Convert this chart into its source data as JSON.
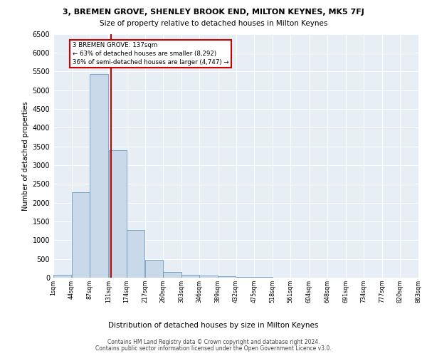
{
  "title_line1": "3, BREMEN GROVE, SHENLEY BROOK END, MILTON KEYNES, MK5 7FJ",
  "title_line2": "Size of property relative to detached houses in Milton Keynes",
  "xlabel": "Distribution of detached houses by size in Milton Keynes",
  "ylabel": "Number of detached properties",
  "bin_edges": [
    1,
    44,
    87,
    131,
    174,
    217,
    260,
    303,
    346,
    389,
    432,
    475,
    518,
    561,
    604,
    648,
    691,
    734,
    777,
    820,
    863
  ],
  "bin_labels": [
    "1sqm",
    "44sqm",
    "87sqm",
    "131sqm",
    "174sqm",
    "217sqm",
    "260sqm",
    "303sqm",
    "346sqm",
    "389sqm",
    "432sqm",
    "475sqm",
    "518sqm",
    "561sqm",
    "604sqm",
    "648sqm",
    "691sqm",
    "734sqm",
    "777sqm",
    "820sqm",
    "863sqm"
  ],
  "counts": [
    70,
    2270,
    5420,
    3390,
    1280,
    480,
    160,
    80,
    65,
    40,
    20,
    10,
    5,
    5,
    2,
    2,
    2,
    2,
    2,
    2
  ],
  "property_size": 137,
  "bar_color": "#c9d9ea",
  "bar_edgecolor": "#5a8db5",
  "red_line_color": "#cc0000",
  "annotation_line1": "3 BREMEN GROVE: 137sqm",
  "annotation_line2": "← 63% of detached houses are smaller (8,292)",
  "annotation_line3": "36% of semi-detached houses are larger (4,747) →",
  "annotation_box_color": "#ffffff",
  "annotation_box_edgecolor": "#cc0000",
  "ylim": [
    0,
    6500
  ],
  "yticks": [
    0,
    500,
    1000,
    1500,
    2000,
    2500,
    3000,
    3500,
    4000,
    4500,
    5000,
    5500,
    6000,
    6500
  ],
  "bg_color": "#e8eef5",
  "footer_line1": "Contains HM Land Registry data © Crown copyright and database right 2024.",
  "footer_line2": "Contains public sector information licensed under the Open Government Licence v3.0."
}
